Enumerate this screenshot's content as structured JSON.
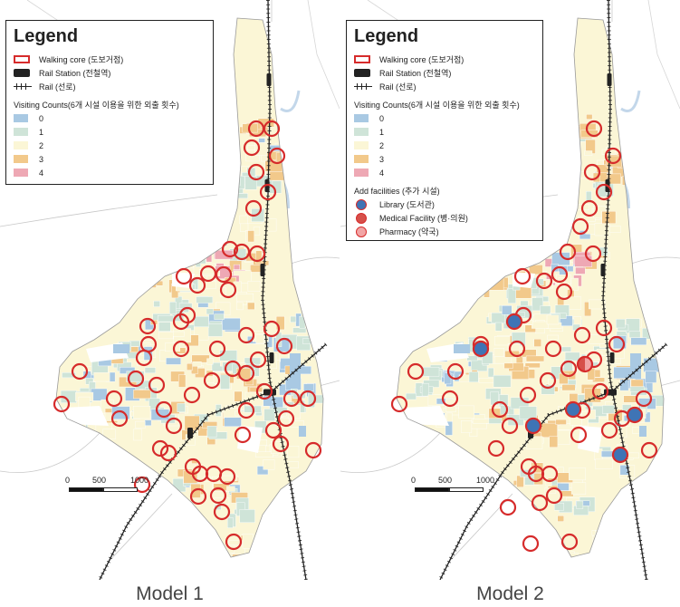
{
  "colors": {
    "walking_core": "#d62b2b",
    "rail_station": "#222222",
    "count_0": "#a9c9e3",
    "count_1": "#cfe4d8",
    "count_2": "#fbf6d6",
    "count_3": "#f2c98b",
    "count_4": "#eea8b4",
    "library": "#3f74b5",
    "medical": "#d6504a",
    "pharmacy": "#f2a5a5"
  },
  "legend": {
    "title": "Legend",
    "walking_core": "Walking core (도보거점)",
    "rail_station": "Rail Station (전철역)",
    "rail": "Rail (선로)",
    "visiting_counts": "Visiting Counts(6개 시설 이용을 위한 외출 횟수)",
    "classes": [
      "0",
      "1",
      "2",
      "3",
      "4"
    ],
    "add_facilities": "Add facilities (추가 시설)",
    "facilities": [
      "Library (도서관)",
      "Medical Facility (병·의원)",
      "Pharmacy (약국)"
    ]
  },
  "scale": {
    "labels": [
      "0",
      "500",
      "1000 m"
    ]
  },
  "panels": [
    {
      "caption": "Model 1"
    },
    {
      "caption": "Model 2"
    }
  ]
}
